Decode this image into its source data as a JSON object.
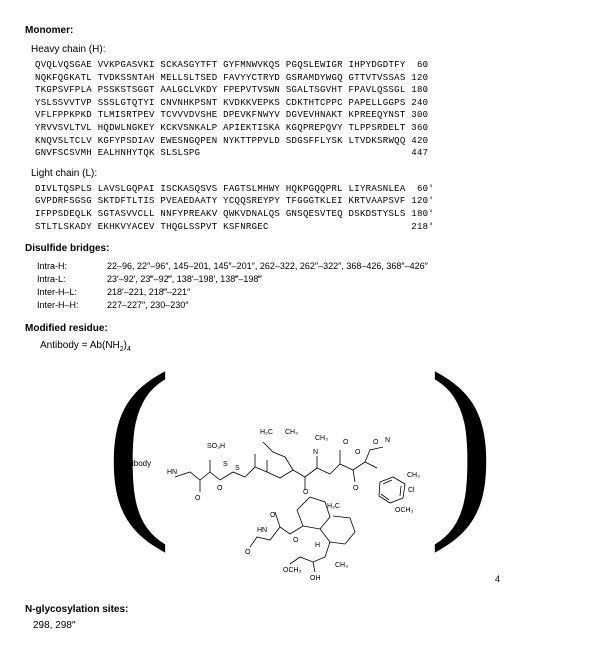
{
  "monomer": {
    "title": "Monomer:",
    "heavy_chain": {
      "title": "Heavy chain (H):",
      "lines": [
        "QVQLVQSGAE VVKPGASVKI SCKASGYTFT GYFMNWVKQS PGQSLEWIGR IHPYDGDTFY  60",
        "NQKFQGKATL TVDKSSNTAH MELLSLTSED FAVYYCTRYD GSRAMDYWGQ GTTVTVSSAS 120",
        "TKGPSVFPLA PSSKSTSGGT AALGCLVKDY FPEPVTVSWN SGALTSGVHT FPAVLQSSGL 180",
        "YSLSSVVTVP SSSLGTQTYI CNVNHKPSNT KVDKKVEPKS CDKTHTCPPC PAPELLGGPS 240",
        "VFLFPPKPKD TLMISRTPEV TCVVVDVSHE DPEVKFNWYV DGVEVHNAKT KPREEQYNST 300",
        "YRVVSVLTVL HQDWLNGKEY KCKVSNKALP APIEKTISKA KGQPREPQVY TLPPSRDELT 360",
        "KNQVSLTCLV KGFYPSDIAV EWESNGQPEN NYKTTPPVLD SDGSFFLYSK LTVDKSRWQQ 420",
        "GNVFSCSVMH EALHNHYTQK SLSLSPG                                     447"
      ]
    },
    "light_chain": {
      "title": "Light chain (L):",
      "lines": [
        "DIVLTQSPLS LAVSLGQPAI ISCKASQSVS FAGTSLMHWY HQKPGQQPRL LIYRASNLEA  60'",
        "GVPDRFSGSG SKTDFTLTIS PVEAEDAATY YCQQSREYPY TFGGGTKLEI KRTVAAPSVF 120'",
        "IFPPSDEQLK SGTASVVCLL NNFYPREAKV QWKVDNALQS GNSQESVTEQ DSKDSTYSLS 180'",
        "STLTLSKADY EKHKVYACEV THQGLSSPVT KSFNRGEC                         218'"
      ]
    }
  },
  "disulfide": {
    "title": "Disulfide bridges:",
    "rows": [
      {
        "label": "Intra-H:",
        "value": "22–96, 22″–96″, 145–201, 145″–201″, 262–322, 262″–322″, 368–426, 368″–426″"
      },
      {
        "label": "Intra-L:",
        "value": "23′–92′, 23‴–92‴, 138′–198′, 138‴–198‴"
      },
      {
        "label": "Inter-H–L:",
        "value": "218′–221, 218‴–221″"
      },
      {
        "label": "Inter-H–H:",
        "value": "227–227″, 230–230″"
      }
    ]
  },
  "modified": {
    "title": "Modified residue:",
    "formula_prefix": "Antibody = Ab(NH",
    "formula_sub1": "2",
    "formula_mid": ")",
    "formula_sub2": "4"
  },
  "structure": {
    "antibody_label": "Antibody",
    "bracket_sub": "4",
    "atoms": [
      "SO₃H",
      "H₃C",
      "CH₃",
      "CH₃",
      "O",
      "O",
      "N",
      "CH₃",
      "Cl",
      "OCH₃",
      "OH",
      "OCH₃",
      "HN",
      "S",
      "S"
    ]
  },
  "glycosylation": {
    "title": "N-glycosylation sites:",
    "value": "298, 298″"
  }
}
